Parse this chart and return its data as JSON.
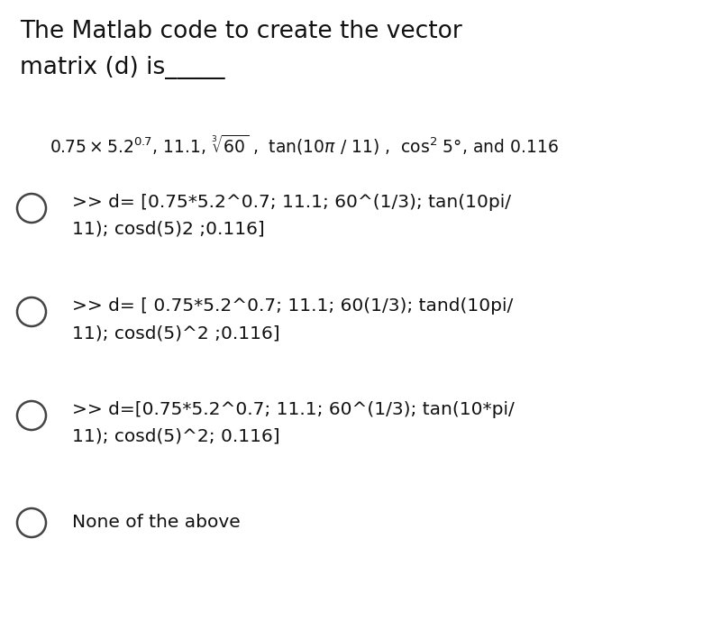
{
  "title_line1": "The Matlab code to create the vector",
  "title_line2": "matrix (d) is_____",
  "bg_color": "#ffffff",
  "text_color": "#111111",
  "circle_color": "#444444",
  "font_size_title": 19,
  "font_size_body": 14.5,
  "options": [
    {
      "id": 1,
      "line1": ">> d= [0.75*5.2^0.7; 11.1; 60^(1/3); tan(10pi/",
      "line2": "11); cosd(5)2 ;0.116]"
    },
    {
      "id": 2,
      "line1": ">> d= [ 0.75*5.2^0.7; 11.1; 60(1/3); tand(10pi/",
      "line2": "11); cosd(5)^2 ;0.116]"
    },
    {
      "id": 3,
      "line1": ">> d=[0.75*5.2^0.7; 11.1; 60^(1/3); tan(10*pi/",
      "line2": "11); cosd(5)^2; 0.116]"
    },
    {
      "id": 4,
      "line1": "None of the above",
      "line2": ""
    }
  ],
  "formula_parts": {
    "math": "$0.75 \\times 5.2^{0.7}$, 11.1, $\\sqrt[3]{60}$ ,  tan(10$\\pi$ / 11) ,  cos$^2$ 5°, and 0.116"
  }
}
